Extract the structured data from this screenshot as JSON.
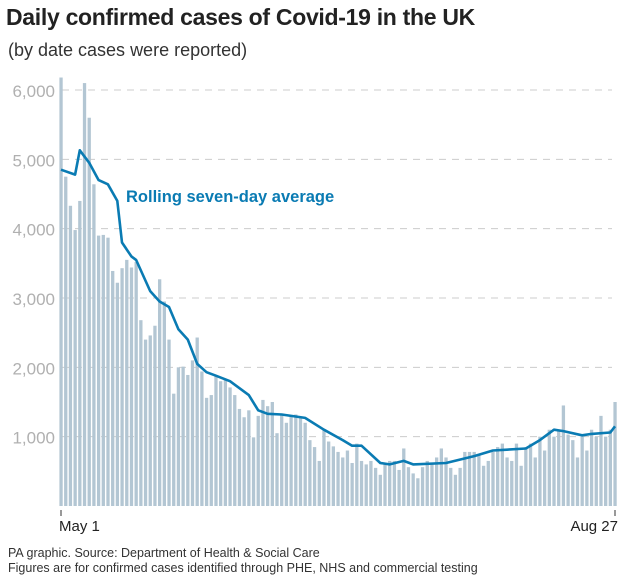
{
  "title": "Daily confirmed cases of Covid-19 in the UK",
  "subtitle": "(by date cases were reported)",
  "footer": {
    "source": "PA graphic. Source: Department of Health & Social Care",
    "note": "Figures are for confirmed cases identified through PHE, NHS and commercial testing"
  },
  "colors": {
    "bars": "#b3c6d3",
    "line": "#0a7bb3",
    "grid": "#cccccc",
    "axis_text": "#b0b0b0"
  },
  "chart_data": {
    "type": "bar",
    "x_start": "May 1",
    "x_end": "Aug 27",
    "x_tick_labels": [
      "May 1",
      "Aug 27"
    ],
    "ylim": [
      0,
      6000
    ],
    "y_ticks": [
      1000,
      2000,
      3000,
      4000,
      5000,
      6000
    ],
    "y_tick_labels": [
      "1,000",
      "2,000",
      "3,000",
      "4,000",
      "5,000",
      "6,000"
    ],
    "grid": "horizontal dashed",
    "values": [
      6180,
      4750,
      4330,
      3980,
      4400,
      6100,
      5600,
      4640,
      3900,
      3910,
      3870,
      3390,
      3220,
      3430,
      3550,
      3440,
      3520,
      2680,
      2400,
      2460,
      2600,
      3270,
      2950,
      2400,
      1620,
      2000,
      2010,
      1890,
      2100,
      2430,
      1940,
      1560,
      1600,
      1870,
      1800,
      1820,
      1710,
      1600,
      1400,
      1280,
      1380,
      990,
      1300,
      1530,
      1440,
      1500,
      1050,
      1320,
      1200,
      1300,
      1320,
      1280,
      1200,
      950,
      850,
      650,
      1100,
      930,
      860,
      780,
      700,
      800,
      620,
      900,
      650,
      600,
      650,
      550,
      450,
      600,
      650,
      650,
      520,
      830,
      560,
      470,
      400,
      560,
      650,
      620,
      700,
      830,
      700,
      550,
      450,
      550,
      780,
      780,
      780,
      750,
      580,
      650,
      780,
      850,
      900,
      700,
      650,
      900,
      580,
      850,
      900,
      700,
      1000,
      800,
      1100,
      1000,
      1100,
      1450,
      1030,
      950,
      700,
      1000,
      800,
      1100,
      1000,
      1300,
      1000,
      1100,
      1500
    ],
    "series": [
      {
        "name": "Rolling seven-day average",
        "points": [
          [
            "May 1",
            4850
          ],
          [
            "May 4",
            4780
          ],
          [
            "May 5",
            5130
          ],
          [
            "May 7",
            4950
          ],
          [
            "May 9",
            4700
          ],
          [
            "May 11",
            4640
          ],
          [
            "May 13",
            4400
          ],
          [
            "May 14",
            3800
          ],
          [
            "May 16",
            3600
          ],
          [
            "May 17",
            3550
          ],
          [
            "May 20",
            3100
          ],
          [
            "May 22",
            2950
          ],
          [
            "May 24",
            2870
          ],
          [
            "May 26",
            2550
          ],
          [
            "May 28",
            2400
          ],
          [
            "May 30",
            2050
          ],
          [
            "Jun 1",
            1930
          ],
          [
            "Jun 3",
            1880
          ],
          [
            "Jun 6",
            1800
          ],
          [
            "Jun 10",
            1600
          ],
          [
            "Jun 12",
            1380
          ],
          [
            "Jun 14",
            1330
          ],
          [
            "Jun 17",
            1320
          ],
          [
            "Jun 22",
            1270
          ],
          [
            "Jun 26",
            1100
          ],
          [
            "Jun 30",
            950
          ],
          [
            "Jul 2",
            870
          ],
          [
            "Jul 4",
            870
          ],
          [
            "Jul 8",
            620
          ],
          [
            "Jul 10",
            600
          ],
          [
            "Jul 13",
            650
          ],
          [
            "Jul 15",
            600
          ],
          [
            "Jul 22",
            620
          ],
          [
            "Jul 28",
            720
          ],
          [
            "Aug 1",
            800
          ],
          [
            "Aug 8",
            830
          ],
          [
            "Aug 11",
            950
          ],
          [
            "Aug 14",
            1100
          ],
          [
            "Aug 16",
            1080
          ],
          [
            "Aug 20",
            1020
          ],
          [
            "Aug 22",
            1040
          ],
          [
            "Aug 26",
            1060
          ],
          [
            "Aug 27",
            1150
          ]
        ]
      }
    ]
  }
}
